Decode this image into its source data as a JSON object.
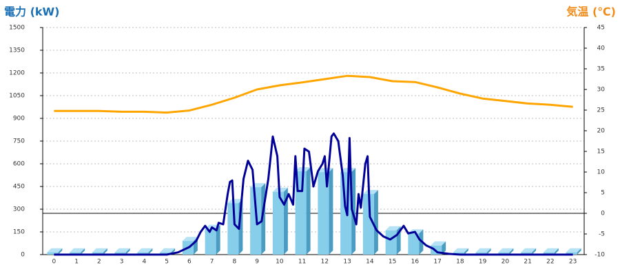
{
  "chart_data": {
    "type": "bar",
    "title": "電力 (kW)",
    "y2_title": "気温 (℃)",
    "categories": [
      "0",
      "1",
      "2",
      "3",
      "4",
      "5",
      "6",
      "7",
      "8",
      "9",
      "10",
      "11",
      "12",
      "13",
      "14",
      "15",
      "16",
      "17",
      "18",
      "19",
      "20",
      "21",
      "22",
      "23"
    ],
    "ylim": [
      0,
      1500
    ],
    "yticks": [
      0,
      150,
      300,
      450,
      600,
      750,
      900,
      1050,
      1200,
      1350,
      1500
    ],
    "y2lim": [
      -10,
      45
    ],
    "y2ticks": [
      -10,
      -5,
      0,
      5,
      10,
      15,
      20,
      25,
      30,
      35,
      40,
      45
    ],
    "grid": true,
    "series": [
      {
        "type": "bar",
        "color": "#87ceeb",
        "values": [
          15,
          15,
          15,
          15,
          15,
          15,
          90,
          170,
          340,
          445,
          415,
          550,
          545,
          545,
          400,
          160,
          140,
          60,
          15,
          15,
          15,
          15,
          15,
          15
        ]
      },
      {
        "type": "line",
        "color": "#000099",
        "x": [
          0,
          5,
          5.5,
          6,
          6.3,
          6.5,
          6.7,
          6.9,
          7,
          7.2,
          7.3,
          7.5,
          7.7,
          7.8,
          7.9,
          8,
          8.2,
          8.4,
          8.6,
          8.8,
          9,
          9.2,
          9.5,
          9.7,
          9.9,
          10,
          10.2,
          10.4,
          10.6,
          10.7,
          10.8,
          11,
          11.1,
          11.3,
          11.5,
          11.7,
          11.9,
          12,
          12.1,
          12.3,
          12.4,
          12.6,
          12.8,
          12.9,
          13,
          13.1,
          13.2,
          13.4,
          13.5,
          13.6,
          13.8,
          13.9,
          14,
          14.3,
          14.6,
          14.9,
          15.2,
          15.5,
          15.7,
          16,
          16.2,
          16.5,
          16.8,
          17,
          17.5,
          18,
          23
        ],
        "values": [
          0,
          0,
          15,
          50,
          90,
          150,
          190,
          150,
          180,
          160,
          210,
          200,
          400,
          480,
          490,
          200,
          170,
          500,
          620,
          560,
          200,
          220,
          500,
          780,
          650,
          380,
          330,
          400,
          330,
          650,
          420,
          420,
          700,
          680,
          450,
          550,
          600,
          650,
          450,
          780,
          800,
          750,
          520,
          320,
          260,
          770,
          300,
          200,
          400,
          310,
          600,
          650,
          250,
          160,
          120,
          100,
          130,
          190,
          140,
          150,
          100,
          60,
          40,
          15,
          5,
          0,
          0
        ]
      },
      {
        "type": "line",
        "axis": "y2",
        "color": "#ffa500",
        "values": [
          24.8,
          24.8,
          24.8,
          24.6,
          24.6,
          24.4,
          24.9,
          26.3,
          28,
          30,
          31,
          31.7,
          32.5,
          33.3,
          33,
          32,
          31.8,
          30.5,
          29,
          27.8,
          27.2,
          26.6,
          26.3,
          25.8
        ]
      }
    ]
  }
}
